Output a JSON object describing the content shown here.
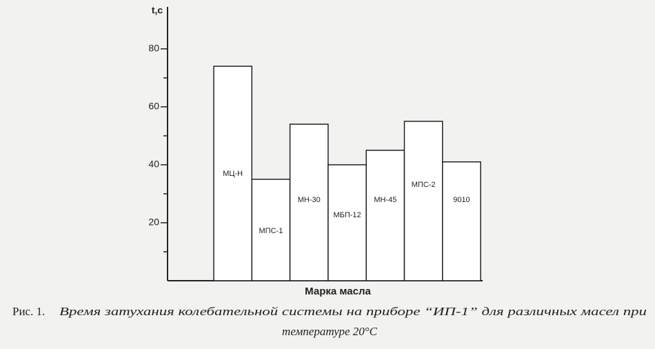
{
  "chart_data": {
    "type": "bar",
    "y_label": "t,c",
    "x_label": "Марка масла",
    "categories": [
      "МЦ-Н",
      "МПС-1",
      "МН-30",
      "МБП-12",
      "МН-45",
      "МПС-2",
      "9010"
    ],
    "values": [
      74,
      35,
      54,
      40,
      45,
      55,
      41
    ],
    "color": "#ffffff",
    "ylim": [
      0,
      94
    ],
    "yticks": [
      20,
      40,
      60,
      80
    ],
    "minor_yticks": [
      10,
      30,
      50,
      70
    ],
    "caption": {
      "prefix": "Рис. 1.",
      "line1": "Время затухания колебательной системы на приборе “ИП-1” для различных масел при",
      "line2": "температуре 20°С"
    }
  }
}
